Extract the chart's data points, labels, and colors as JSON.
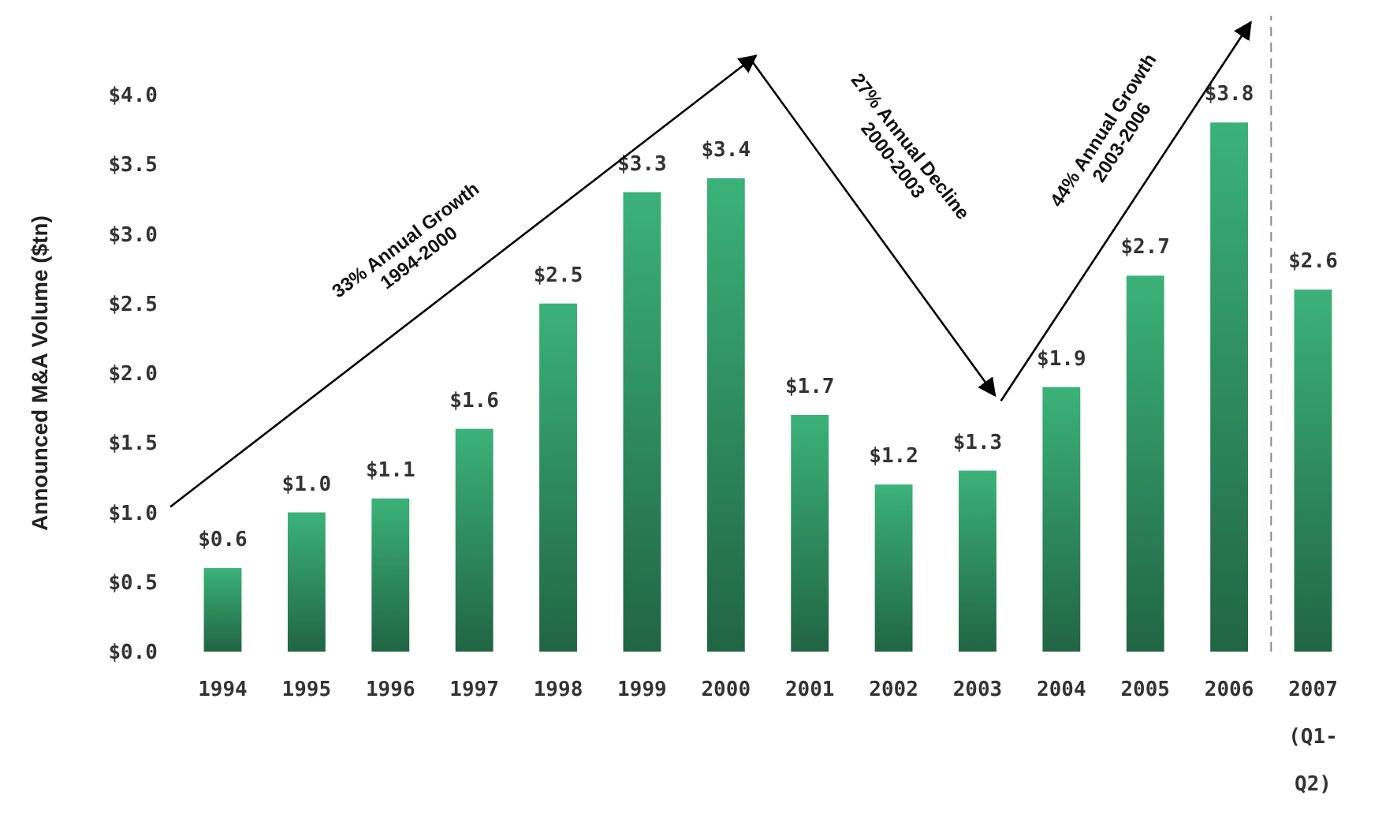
{
  "chart_data": {
    "type": "bar",
    "ylabel": "Announced M&A Volume ($tn)",
    "categories": [
      "1994",
      "1995",
      "1996",
      "1997",
      "1998",
      "1999",
      "2000",
      "2001",
      "2002",
      "2003",
      "2004",
      "2005",
      "2006",
      "2007 (Q1-Q2)"
    ],
    "values": [
      0.6,
      1.0,
      1.1,
      1.6,
      2.5,
      3.3,
      3.4,
      1.7,
      1.2,
      1.3,
      1.9,
      2.7,
      3.8,
      2.6
    ],
    "value_labels": [
      "$0.6",
      "$1.0",
      "$1.1",
      "$1.6",
      "$2.5",
      "$3.3",
      "$3.4",
      "$1.7",
      "$1.2",
      "$1.3",
      "$1.9",
      "$2.7",
      "$3.8",
      "$2.6"
    ],
    "color": "#2e8b5e",
    "ylim": [
      0,
      4.0
    ],
    "yticks": [
      {
        "value": 0,
        "label": "$0.0"
      },
      {
        "value": 0.5,
        "label": "$0.5"
      },
      {
        "value": 1,
        "label": "$1.0"
      },
      {
        "value": 1.5,
        "label": "$1.5"
      },
      {
        "value": 2,
        "label": "$2.0"
      },
      {
        "value": 2.5,
        "label": "$2.5"
      },
      {
        "value": 3,
        "label": "$3.0"
      },
      {
        "value": 3.5,
        "label": "$3.5"
      },
      {
        "value": 4,
        "label": "$4.0"
      }
    ],
    "grid": false,
    "annotations": [
      "33% Annual Growth\n1994-2000",
      "27% Annual Decline\n2000-2003",
      "44% Annual Growth\n2003-2006"
    ]
  }
}
